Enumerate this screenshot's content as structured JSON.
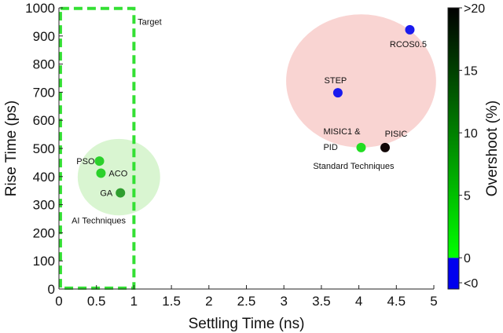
{
  "chart_data": {
    "type": "scatter",
    "title": "",
    "xlabel": "Settling Time (ns)",
    "ylabel": "Rise Time (ps)",
    "xlim": [
      0,
      5
    ],
    "ylim": [
      0,
      1000
    ],
    "xticks": [
      0,
      0.5,
      1,
      1.5,
      2,
      2.5,
      3,
      3.5,
      4,
      4.5,
      5
    ],
    "yticks": [
      0,
      100,
      200,
      300,
      400,
      500,
      600,
      700,
      800,
      900,
      1000
    ],
    "grid": false,
    "points": [
      {
        "label": "PSO",
        "x": 0.54,
        "y": 455,
        "overshoot": 2,
        "color": "#2bd12b"
      },
      {
        "label": "ACO",
        "x": 0.56,
        "y": 412,
        "overshoot": 2,
        "color": "#2bd12b"
      },
      {
        "label": "GA",
        "x": 0.82,
        "y": 342,
        "overshoot": 6,
        "color": "#2f9e2f"
      },
      {
        "label": "MISIC1 & PID",
        "x": 4.03,
        "y": 503,
        "overshoot": 1,
        "color": "#22dd22"
      },
      {
        "label": "PISIC",
        "x": 4.35,
        "y": 503,
        "overshoot": 20,
        "color": "#120606"
      },
      {
        "label": "STEP",
        "x": 3.72,
        "y": 698,
        "overshoot": -1,
        "color": "#1a1aee"
      },
      {
        "label": "RCOS0.5",
        "x": 4.68,
        "y": 922,
        "overshoot": -1,
        "color": "#1a1aee"
      }
    ],
    "regions": [
      {
        "label": "AI Techniques",
        "color": "#d9f5d1"
      },
      {
        "label": "Standard Techniques",
        "color": "#f9d4d2"
      },
      {
        "label": "Target",
        "color": "#33e033"
      }
    ],
    "colorbar": {
      "label": "Overshoot (%)",
      "ticks": [
        "<0",
        "0",
        "5",
        "10",
        "15",
        ">20"
      ],
      "tick_values": [
        -2,
        0,
        5,
        10,
        15,
        20
      ],
      "range": [
        -2.5,
        20
      ],
      "colors": {
        "negative": "#0000ee",
        "zero": "#00ff00",
        "max": "#000000"
      }
    }
  }
}
